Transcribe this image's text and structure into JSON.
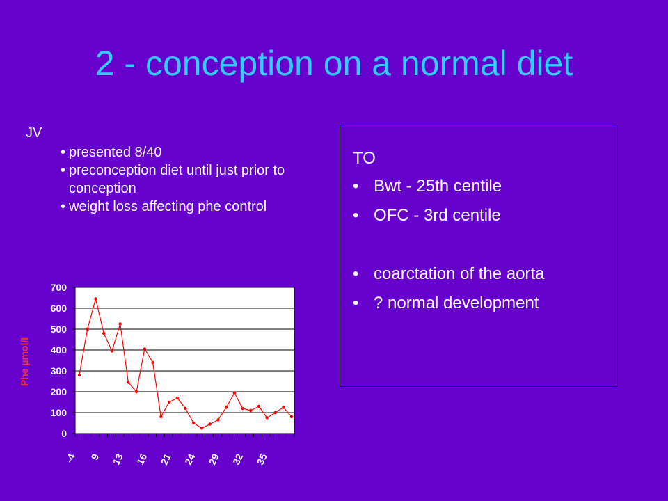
{
  "slide": {
    "title": "2 - conception on a normal diet",
    "patient_label": "JV",
    "notes": [
      "presented 8/40",
      "preconception diet until just prior to conception",
      "weight loss affecting phe control"
    ],
    "box": {
      "title": "TO",
      "items": [
        "Bwt - 25th centile",
        "OFC - 3rd centile",
        "",
        "coarctation of the aorta",
        "? normal development"
      ]
    }
  },
  "colors": {
    "background": "#6600cc",
    "title": "#33ccff",
    "text": "#ffffff",
    "plot_area": "#ffffff",
    "series": "#ff0000"
  },
  "chart_data": {
    "type": "line",
    "title": "",
    "xlabel": "",
    "ylabel": "Phe µmol/l",
    "ylim": [
      0,
      700
    ],
    "yticks": [
      0,
      100,
      200,
      300,
      400,
      500,
      600,
      700
    ],
    "xtick_labels": [
      "-4",
      "9",
      "13",
      "16",
      "21",
      "24",
      "29",
      "32",
      "35"
    ],
    "grid": "horizontal",
    "series": [
      {
        "values": [
          280,
          500,
          645,
          480,
          395,
          525,
          245,
          200,
          405,
          340,
          80,
          150,
          170,
          120,
          50,
          25,
          45,
          65,
          125,
          195,
          120,
          110,
          130,
          75,
          100,
          125,
          80
        ]
      }
    ]
  }
}
